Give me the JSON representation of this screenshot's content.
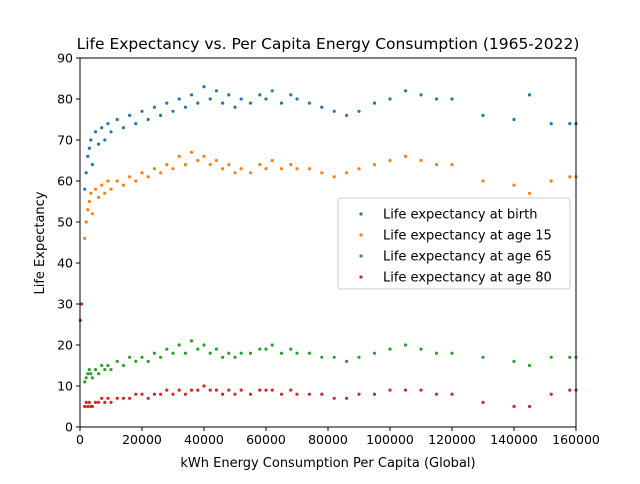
{
  "chart_data": {
    "type": "scatter",
    "title": "Life Expectancy vs. Per Capita Energy Consumption (1965-2022)",
    "xlabel": "kWh Energy Consumption Per Capita (Global)",
    "ylabel": "Life Expectancy",
    "xlim": [
      0,
      160000
    ],
    "ylim": [
      0,
      90
    ],
    "xticks": [
      0,
      20000,
      40000,
      60000,
      80000,
      100000,
      120000,
      140000,
      160000
    ],
    "yticks": [
      0,
      10,
      20,
      30,
      40,
      50,
      60,
      70,
      80,
      90
    ],
    "grid": false,
    "legend_position": "center-right",
    "series": [
      {
        "name": "Life expectancy at birth",
        "color": "#1f77b4",
        "points": [
          [
            1500,
            58
          ],
          [
            2000,
            62
          ],
          [
            2500,
            66
          ],
          [
            3000,
            68
          ],
          [
            3500,
            70
          ],
          [
            4000,
            64
          ],
          [
            5000,
            72
          ],
          [
            6000,
            69
          ],
          [
            7000,
            73
          ],
          [
            8000,
            70
          ],
          [
            9000,
            74
          ],
          [
            10000,
            72
          ],
          [
            12000,
            75
          ],
          [
            14000,
            73
          ],
          [
            16000,
            76
          ],
          [
            18000,
            74
          ],
          [
            20000,
            77
          ],
          [
            22000,
            75
          ],
          [
            24000,
            78
          ],
          [
            26000,
            76
          ],
          [
            28000,
            79
          ],
          [
            30000,
            77
          ],
          [
            32000,
            80
          ],
          [
            34000,
            78
          ],
          [
            36000,
            81
          ],
          [
            38000,
            79
          ],
          [
            40000,
            83
          ],
          [
            42000,
            80
          ],
          [
            44000,
            82
          ],
          [
            46000,
            79
          ],
          [
            48000,
            81
          ],
          [
            50000,
            78
          ],
          [
            52000,
            80
          ],
          [
            55000,
            79
          ],
          [
            58000,
            81
          ],
          [
            60000,
            80
          ],
          [
            62000,
            82
          ],
          [
            65000,
            79
          ],
          [
            68000,
            81
          ],
          [
            70000,
            80
          ],
          [
            74000,
            79
          ],
          [
            78000,
            78
          ],
          [
            82000,
            77
          ],
          [
            86000,
            76
          ],
          [
            90000,
            77
          ],
          [
            95000,
            79
          ],
          [
            100000,
            80
          ],
          [
            105000,
            82
          ],
          [
            110000,
            81
          ],
          [
            115000,
            80
          ],
          [
            120000,
            80
          ],
          [
            130000,
            76
          ],
          [
            140000,
            75
          ],
          [
            145000,
            81
          ],
          [
            152000,
            74
          ],
          [
            158000,
            74
          ],
          [
            160000,
            74
          ]
        ]
      },
      {
        "name": "Life expectancy at age 15",
        "color": "#ff7f0e",
        "points": [
          [
            1500,
            46
          ],
          [
            2000,
            50
          ],
          [
            2500,
            53
          ],
          [
            3000,
            55
          ],
          [
            3500,
            57
          ],
          [
            4000,
            52
          ],
          [
            5000,
            58
          ],
          [
            6000,
            56
          ],
          [
            7000,
            59
          ],
          [
            8000,
            57
          ],
          [
            9000,
            60
          ],
          [
            10000,
            58
          ],
          [
            12000,
            60
          ],
          [
            14000,
            59
          ],
          [
            16000,
            61
          ],
          [
            18000,
            60
          ],
          [
            20000,
            62
          ],
          [
            22000,
            61
          ],
          [
            24000,
            63
          ],
          [
            26000,
            62
          ],
          [
            28000,
            64
          ],
          [
            30000,
            63
          ],
          [
            32000,
            66
          ],
          [
            34000,
            64
          ],
          [
            36000,
            67
          ],
          [
            38000,
            65
          ],
          [
            40000,
            66
          ],
          [
            42000,
            64
          ],
          [
            44000,
            65
          ],
          [
            46000,
            63
          ],
          [
            48000,
            64
          ],
          [
            50000,
            62
          ],
          [
            52000,
            63
          ],
          [
            55000,
            62
          ],
          [
            58000,
            64
          ],
          [
            60000,
            63
          ],
          [
            62000,
            65
          ],
          [
            65000,
            63
          ],
          [
            68000,
            64
          ],
          [
            70000,
            63
          ],
          [
            74000,
            63
          ],
          [
            78000,
            62
          ],
          [
            82000,
            61
          ],
          [
            86000,
            62
          ],
          [
            90000,
            63
          ],
          [
            95000,
            64
          ],
          [
            100000,
            65
          ],
          [
            105000,
            66
          ],
          [
            110000,
            65
          ],
          [
            115000,
            64
          ],
          [
            120000,
            64
          ],
          [
            130000,
            60
          ],
          [
            140000,
            59
          ],
          [
            145000,
            57
          ],
          [
            152000,
            60
          ],
          [
            158000,
            61
          ],
          [
            160000,
            61
          ]
        ]
      },
      {
        "name": "Life expectancy at age 65",
        "color": "#2ca02c",
        "points": [
          [
            1500,
            11
          ],
          [
            2000,
            12
          ],
          [
            2500,
            13
          ],
          [
            3000,
            14
          ],
          [
            3500,
            13
          ],
          [
            4000,
            12
          ],
          [
            5000,
            14
          ],
          [
            6000,
            13
          ],
          [
            7000,
            15
          ],
          [
            8000,
            14
          ],
          [
            9000,
            15
          ],
          [
            10000,
            14
          ],
          [
            12000,
            16
          ],
          [
            14000,
            15
          ],
          [
            16000,
            17
          ],
          [
            18000,
            16
          ],
          [
            20000,
            17
          ],
          [
            22000,
            16
          ],
          [
            24000,
            18
          ],
          [
            26000,
            17
          ],
          [
            28000,
            19
          ],
          [
            30000,
            18
          ],
          [
            32000,
            20
          ],
          [
            34000,
            18
          ],
          [
            36000,
            21
          ],
          [
            38000,
            19
          ],
          [
            40000,
            20
          ],
          [
            42000,
            18
          ],
          [
            44000,
            19
          ],
          [
            46000,
            17
          ],
          [
            48000,
            18
          ],
          [
            50000,
            17
          ],
          [
            52000,
            18
          ],
          [
            55000,
            18
          ],
          [
            58000,
            19
          ],
          [
            60000,
            19
          ],
          [
            62000,
            20
          ],
          [
            65000,
            18
          ],
          [
            68000,
            19
          ],
          [
            70000,
            18
          ],
          [
            74000,
            18
          ],
          [
            78000,
            17
          ],
          [
            82000,
            17
          ],
          [
            86000,
            16
          ],
          [
            90000,
            17
          ],
          [
            95000,
            18
          ],
          [
            100000,
            19
          ],
          [
            105000,
            20
          ],
          [
            110000,
            19
          ],
          [
            115000,
            18
          ],
          [
            120000,
            18
          ],
          [
            130000,
            17
          ],
          [
            140000,
            16
          ],
          [
            145000,
            15
          ],
          [
            152000,
            17
          ],
          [
            158000,
            17
          ],
          [
            160000,
            17
          ]
        ]
      },
      {
        "name": "Life expectancy at age 80",
        "color": "#d62728",
        "points": [
          [
            100,
            26
          ],
          [
            500,
            30
          ],
          [
            1500,
            5
          ],
          [
            2000,
            6
          ],
          [
            2500,
            5
          ],
          [
            3000,
            6
          ],
          [
            3500,
            5
          ],
          [
            4000,
            5
          ],
          [
            5000,
            6
          ],
          [
            6000,
            6
          ],
          [
            7000,
            7
          ],
          [
            8000,
            6
          ],
          [
            9000,
            7
          ],
          [
            10000,
            6
          ],
          [
            12000,
            7
          ],
          [
            14000,
            7
          ],
          [
            16000,
            7
          ],
          [
            18000,
            8
          ],
          [
            20000,
            8
          ],
          [
            22000,
            7
          ],
          [
            24000,
            8
          ],
          [
            26000,
            8
          ],
          [
            28000,
            9
          ],
          [
            30000,
            8
          ],
          [
            32000,
            9
          ],
          [
            34000,
            8
          ],
          [
            36000,
            9
          ],
          [
            38000,
            9
          ],
          [
            40000,
            10
          ],
          [
            42000,
            9
          ],
          [
            44000,
            9
          ],
          [
            46000,
            8
          ],
          [
            48000,
            9
          ],
          [
            50000,
            8
          ],
          [
            52000,
            9
          ],
          [
            55000,
            8
          ],
          [
            58000,
            9
          ],
          [
            60000,
            9
          ],
          [
            62000,
            9
          ],
          [
            65000,
            8
          ],
          [
            68000,
            9
          ],
          [
            70000,
            8
          ],
          [
            74000,
            8
          ],
          [
            78000,
            8
          ],
          [
            82000,
            7
          ],
          [
            86000,
            7
          ],
          [
            90000,
            8
          ],
          [
            95000,
            8
          ],
          [
            100000,
            9
          ],
          [
            105000,
            9
          ],
          [
            110000,
            9
          ],
          [
            115000,
            8
          ],
          [
            120000,
            8
          ],
          [
            130000,
            6
          ],
          [
            140000,
            5
          ],
          [
            145000,
            5
          ],
          [
            152000,
            8
          ],
          [
            158000,
            9
          ],
          [
            160000,
            9
          ]
        ]
      }
    ]
  }
}
